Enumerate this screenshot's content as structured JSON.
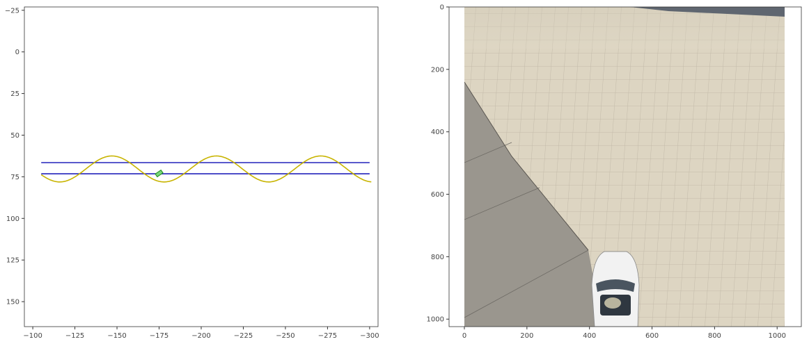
{
  "chart_data": [
    {
      "type": "line",
      "title": "",
      "xlabel": "",
      "ylabel": "",
      "xlim": [
        -95,
        -305
      ],
      "ylim": [
        165,
        -27
      ],
      "x_ticks": [
        -100,
        -125,
        -150,
        -175,
        -200,
        -225,
        -250,
        -275,
        -300
      ],
      "y_ticks": [
        -25,
        0,
        25,
        50,
        75,
        100,
        125,
        150
      ],
      "grid": false,
      "series": [
        {
          "values_desc": "lane boundary upper",
          "color": "#2222bb",
          "x": [
            -105,
            -300
          ],
          "y": [
            66.5,
            66.5
          ]
        },
        {
          "values_desc": "lane boundary lower",
          "color": "#2222bb",
          "x": [
            -105,
            -300
          ],
          "y": [
            73.2,
            73.2
          ]
        },
        {
          "values_desc": "sinusoidal path",
          "color": "#c8b400",
          "x_start": -105,
          "x_end": -301,
          "center": 70.3,
          "amplitude": 7.8,
          "period": 62,
          "x_at_min": -147
        }
      ],
      "marker": {
        "x": -175,
        "y": 73,
        "heading_deg": -35,
        "color": "#1a8a1a"
      }
    },
    {
      "type": "image",
      "xlim": [
        0,
        1024
      ],
      "ylim": [
        1024,
        0
      ],
      "x_ticks": [
        0,
        200,
        400,
        600,
        800,
        1000
      ],
      "y_ticks": [
        0,
        200,
        400,
        600,
        800,
        1000
      ],
      "image": {
        "content": "camera view: tiled concrete plaza, white car from above at bottom center",
        "colors": {
          "tiles": "#ddd5c2",
          "tile_lines": "#b9b0a0",
          "asphalt": "#9a968e",
          "road": "#5f6670",
          "car": "#f2f2f2",
          "windshield": "#4a5560"
        }
      }
    }
  ]
}
